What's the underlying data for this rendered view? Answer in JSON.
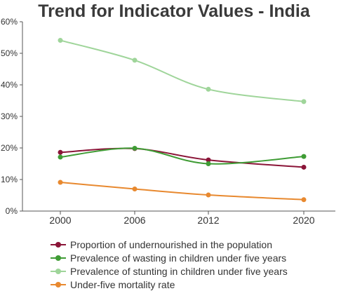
{
  "chart_data": {
    "type": "line",
    "title": "Trend for Indicator Values - India",
    "x": [
      "2000",
      "2006",
      "2012",
      "2020"
    ],
    "y_ticks": [
      "0%",
      "10%",
      "20%",
      "30%",
      "40%",
      "50%",
      "60%"
    ],
    "ylim": [
      0,
      60
    ],
    "y_unit": "%",
    "grid": false,
    "legend_position": "bottom",
    "series": [
      {
        "name": "Proportion of undernourished in the population",
        "color": "#8b1538",
        "values": [
          18.6,
          19.8,
          16.2,
          13.9
        ]
      },
      {
        "name": "Prevalence of wasting in children under five years",
        "color": "#3f9c35",
        "values": [
          17.1,
          19.9,
          15.0,
          17.3
        ]
      },
      {
        "name": "Prevalence of stunting in children under five years",
        "color": "#9fd59a",
        "values": [
          54.1,
          47.8,
          38.6,
          34.7
        ]
      },
      {
        "name": "Under-five mortality rate",
        "color": "#e8892f",
        "values": [
          9.1,
          7.0,
          5.1,
          3.6
        ]
      }
    ]
  }
}
